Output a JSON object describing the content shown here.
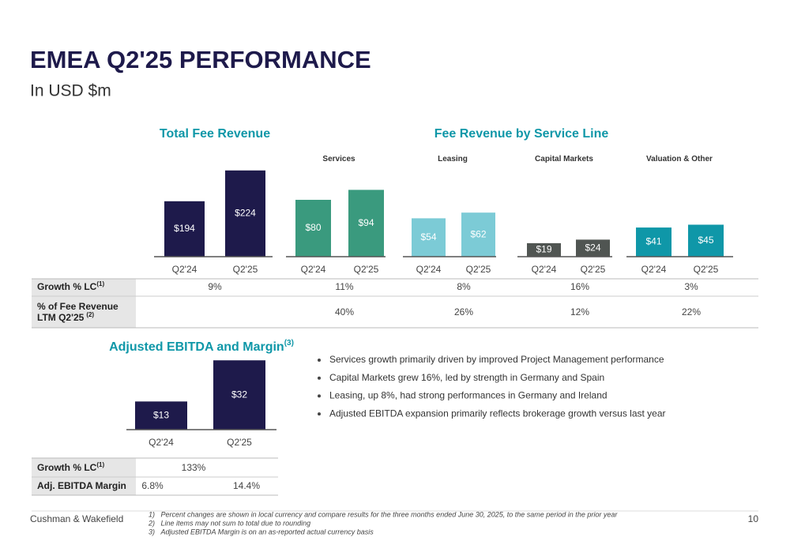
{
  "header": {
    "title": "EMEA Q2'25 PERFORMANCE",
    "subtitle": "In USD $m"
  },
  "section_title": "Fee Revenue by Service Line",
  "chart_data": [
    {
      "type": "bar",
      "title": "Total Fee Revenue",
      "categories": [
        "Q2'24",
        "Q2'25"
      ],
      "values": [
        194,
        224
      ],
      "value_labels": [
        "$194",
        "$224"
      ],
      "color": "#1e1a4b",
      "ylim": [
        140,
        240
      ]
    },
    {
      "type": "bar",
      "title": "Services",
      "categories": [
        "Q2'24",
        "Q2'25"
      ],
      "values": [
        80,
        94
      ],
      "value_labels": [
        "$80",
        "$94"
      ],
      "color": "#3a9a7e",
      "ylim": [
        0,
        120
      ]
    },
    {
      "type": "bar",
      "title": "Leasing",
      "categories": [
        "Q2'24",
        "Q2'25"
      ],
      "values": [
        54,
        62
      ],
      "value_labels": [
        "$54",
        "$62"
      ],
      "color": "#7ccbd6",
      "ylim": [
        0,
        120
      ]
    },
    {
      "type": "bar",
      "title": "Capital Markets",
      "categories": [
        "Q2'24",
        "Q2'25"
      ],
      "values": [
        19,
        24
      ],
      "value_labels": [
        "$19",
        "$24"
      ],
      "color": "#505552",
      "ylim": [
        0,
        120
      ]
    },
    {
      "type": "bar",
      "title": "Valuation & Other",
      "categories": [
        "Q2'24",
        "Q2'25"
      ],
      "values": [
        41,
        45
      ],
      "value_labels": [
        "$41",
        "$45"
      ],
      "color": "#0f97a8",
      "ylim": [
        0,
        120
      ]
    },
    {
      "type": "bar",
      "title": "Adjusted EBITDA and Margin",
      "title_note": "(3)",
      "categories": [
        "Q2'24",
        "Q2'25"
      ],
      "values": [
        13,
        32
      ],
      "value_labels": [
        "$13",
        "$32"
      ],
      "color": "#1e1a4b",
      "ylim": [
        0,
        35
      ]
    }
  ],
  "table": {
    "rows": [
      {
        "label": "Growth % LC",
        "note": "(1)",
        "cells": [
          "9%",
          "11%",
          "8%",
          "16%",
          "3%"
        ]
      },
      {
        "label": "% of Fee Revenue",
        "label2": "LTM Q2'25",
        "note": "(2)",
        "cells": [
          null,
          "40%",
          "26%",
          "12%",
          "22%"
        ]
      }
    ]
  },
  "ebitda_table": {
    "rows": [
      {
        "label": "Growth % LC",
        "note": "(1)",
        "cells": [
          "133%"
        ]
      },
      {
        "label": "Adj. EBITDA Margin",
        "cells": [
          "6.8%",
          "14.4%"
        ]
      }
    ]
  },
  "bullets": [
    "Services growth primarily driven by improved Project Management performance",
    "Capital Markets grew 16%, led by strength in Germany and Spain",
    "Leasing, up 8%, had strong performances in Germany and Ireland",
    "Adjusted EBITDA expansion primarily reflects brokerage growth versus last year"
  ],
  "footer": {
    "company": "Cushman & Wakefield",
    "page": "10",
    "notes": [
      "1)   Percent changes are shown in local currency and compare results for the three months ended June 30, 2025, to the same period in the prior year",
      "2)   Line items may not sum to total due to rounding",
      "3)   Adjusted EBITDA Margin is on an as-reported actual currency basis"
    ]
  }
}
